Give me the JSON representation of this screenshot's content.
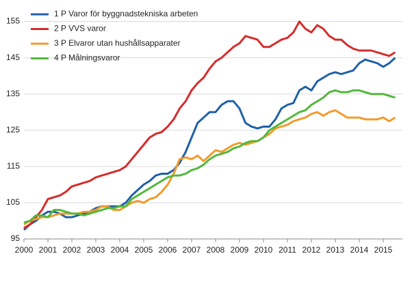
{
  "chart_data": {
    "type": "line",
    "x": [
      2000,
      2000.25,
      2000.5,
      2000.75,
      2001,
      2001.25,
      2001.5,
      2001.75,
      2002,
      2002.25,
      2002.5,
      2002.75,
      2003,
      2003.25,
      2003.5,
      2003.75,
      2004,
      2004.25,
      2004.5,
      2004.75,
      2005,
      2005.25,
      2005.5,
      2005.75,
      2006,
      2006.25,
      2006.5,
      2006.75,
      2007,
      2007.25,
      2007.5,
      2007.75,
      2008,
      2008.25,
      2008.5,
      2008.75,
      2009,
      2009.25,
      2009.5,
      2009.75,
      2010,
      2010.25,
      2010.5,
      2010.75,
      2011,
      2011.25,
      2011.5,
      2011.75,
      2012,
      2012.25,
      2012.5,
      2012.75,
      2013,
      2013.25,
      2013.5,
      2013.75,
      2014,
      2014.25,
      2014.5,
      2014.75,
      2015,
      2015.25,
      2015.5
    ],
    "series": [
      {
        "name": "1 P Varor för byggnadstekniska arbeten",
        "color": "#1f5fa8",
        "values": [
          97.5,
          99,
          100,
          101.5,
          102.5,
          102.5,
          102,
          101,
          101,
          101.5,
          102,
          102.5,
          103.5,
          104,
          104,
          104,
          104,
          105,
          107,
          108.5,
          110,
          111,
          112.5,
          113,
          113,
          114,
          116,
          119,
          123,
          127,
          128.5,
          130,
          130,
          132,
          133,
          133,
          131,
          127,
          126,
          125.5,
          126,
          126,
          128,
          131,
          132,
          132.5,
          136,
          137,
          136,
          138.5,
          139.5,
          140.5,
          141,
          140.5,
          141,
          141.5,
          143.5,
          144.5,
          144,
          143.5,
          142.5,
          143.5,
          145
        ]
      },
      {
        "name": "2 P VVS varor",
        "color": "#d62b2b",
        "values": [
          98,
          99,
          101,
          103,
          106,
          106.5,
          107,
          108,
          109.5,
          110,
          110.5,
          111,
          112,
          112.5,
          113,
          113.5,
          114,
          115,
          117,
          119,
          121,
          123,
          124,
          124.5,
          126,
          128,
          131,
          133,
          136,
          138,
          139.5,
          142,
          144,
          145,
          146.5,
          148,
          149,
          151,
          150.5,
          150,
          148,
          148,
          149,
          150,
          150.5,
          152,
          155,
          153,
          152,
          154,
          153,
          151,
          150,
          150,
          148.5,
          147.5,
          147,
          147,
          147,
          146.5,
          146,
          145.5,
          146.5
        ]
      },
      {
        "name": "3 P Elvaror utan hushållsapparater",
        "color": "#f39a2b",
        "values": [
          99,
          100,
          100.5,
          101,
          101,
          101.5,
          102,
          102,
          102,
          102,
          102.5,
          102.5,
          103,
          104,
          104,
          103,
          103,
          104,
          105,
          105.5,
          105,
          106,
          106.5,
          108,
          110,
          113,
          117,
          117.5,
          117,
          118,
          116.5,
          118,
          119.5,
          119,
          120,
          121,
          121.5,
          121,
          121.5,
          122,
          123,
          124,
          125.5,
          126,
          126.5,
          127.5,
          128,
          128.5,
          129.5,
          130,
          129,
          130,
          130.5,
          129.5,
          128.5,
          128.5,
          128.5,
          128,
          128,
          128,
          128.5,
          127.5,
          128.5
        ]
      },
      {
        "name": "4 P Målningsvaror",
        "color": "#52b83b",
        "values": [
          99.5,
          100,
          101.5,
          101.5,
          101,
          103,
          103,
          102.5,
          102,
          102,
          101.5,
          102,
          102.5,
          103,
          103.5,
          103.5,
          104,
          104,
          106,
          107,
          108,
          109,
          110,
          111,
          112,
          112.5,
          112.5,
          113,
          114,
          114.5,
          115.5,
          117,
          118,
          118.5,
          119,
          120,
          120.5,
          121.5,
          122,
          122,
          123,
          125,
          126,
          127,
          128,
          129,
          130,
          130.5,
          132,
          133,
          134,
          135.5,
          136,
          135.5,
          135.5,
          136,
          136,
          135.5,
          135,
          135,
          135,
          134.5,
          134
        ]
      }
    ],
    "xlim": [
      2000,
      2015.8
    ],
    "xticks": [
      2000,
      2001,
      2002,
      2003,
      2004,
      2005,
      2006,
      2007,
      2008,
      2009,
      2010,
      2011,
      2012,
      2013,
      2014,
      2015
    ],
    "ylim": [
      95,
      160
    ],
    "yticks": [
      95,
      105,
      115,
      125,
      135,
      145,
      155
    ],
    "grid": true,
    "legend": "upper left"
  }
}
